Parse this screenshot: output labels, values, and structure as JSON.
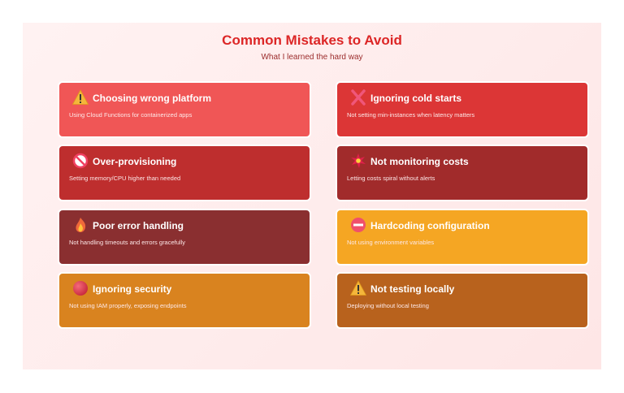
{
  "header": {
    "title": "Common Mistakes to Avoid",
    "subtitle": "What I learned the hard way"
  },
  "cards": [
    {
      "icon": "warning-icon",
      "title": "Choosing wrong platform",
      "description": "Using Cloud Functions for containerized apps",
      "color": "#f05656"
    },
    {
      "icon": "cross-mark-icon",
      "title": "Ignoring cold starts",
      "description": "Not setting min-instances when latency matters",
      "color": "#dc3636"
    },
    {
      "icon": "prohibited-icon",
      "title": "Over-provisioning",
      "description": "Setting memory/CPU higher than needed",
      "color": "#be2e2e"
    },
    {
      "icon": "collision-icon",
      "title": "Not monitoring costs",
      "description": "Letting costs spiral without alerts",
      "color": "#a12b2b"
    },
    {
      "icon": "fire-icon",
      "title": "Poor error handling",
      "description": "Not handling timeouts and errors gracefully",
      "color": "#8a2f30"
    },
    {
      "icon": "no-entry-icon",
      "title": "Hardcoding configuration",
      "description": "Not using environment variables",
      "color": "#f5a623"
    },
    {
      "icon": "red-circle-icon",
      "title": "Ignoring security",
      "description": "Not using IAM properly, exposing endpoints",
      "color": "#d9831f"
    },
    {
      "icon": "warning-icon",
      "title": "Not testing locally",
      "description": "Deploying without local testing",
      "color": "#b8621d"
    }
  ]
}
